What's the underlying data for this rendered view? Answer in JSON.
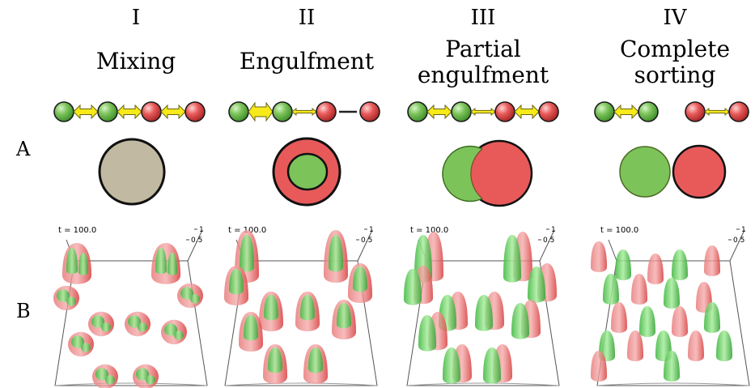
{
  "row_labels": [
    "A",
    "B"
  ],
  "columns": [
    {
      "numeral": "I",
      "title": [
        "Mixing"
      ],
      "time": "t = 100.0",
      "axis_top": "1",
      "axis_mid": "0.5",
      "chain": [
        {
          "a": "green",
          "b": "green",
          "w": "med"
        },
        {
          "a": "green",
          "b": "red",
          "w": "med"
        },
        {
          "a": "red",
          "b": "red",
          "w": "med"
        }
      ],
      "cells": "mixed",
      "drops": "mixed"
    },
    {
      "numeral": "II",
      "title": [
        "Engulfment"
      ],
      "time": "t = 100.0",
      "axis_top": "1",
      "axis_mid": "0.5",
      "chain": [
        {
          "a": "green",
          "b": "green",
          "w": "big"
        },
        {
          "a": "green",
          "b": "red",
          "w": "thin"
        },
        {
          "a": "red",
          "b": "red",
          "w": "line"
        }
      ],
      "cells": "engulf",
      "drops": "engulf"
    },
    {
      "numeral": "III",
      "title": [
        "Partial",
        "engulfment"
      ],
      "time": "t = 100.0",
      "axis_top": "1",
      "axis_mid": "0.5",
      "chain": [
        {
          "a": "green",
          "b": "green",
          "w": "med"
        },
        {
          "a": "green",
          "b": "red",
          "w": "thin"
        },
        {
          "a": "red",
          "b": "red",
          "w": "med"
        }
      ],
      "cells": "partial",
      "drops": "partial"
    },
    {
      "numeral": "IV",
      "title": [
        "Complete",
        "sorting"
      ],
      "time": "t = 100.0",
      "axis_top": "1",
      "axis_mid": "0.5",
      "chain": [
        {
          "a": "green",
          "b": "green",
          "w": "med"
        },
        {
          "a": "red",
          "b": "red",
          "w": "thin"
        }
      ],
      "cells": "sorted",
      "drops": "sorted"
    }
  ],
  "colors": {
    "green": "#7cc35a",
    "green_dark": "#3f9a2c",
    "red": "#e85a5a",
    "red_dark": "#c43b3b",
    "mixed_fill": "#c1b9a1",
    "arrow_yellow": "#f7ea1a",
    "arrow_edge": "#6a6414"
  }
}
